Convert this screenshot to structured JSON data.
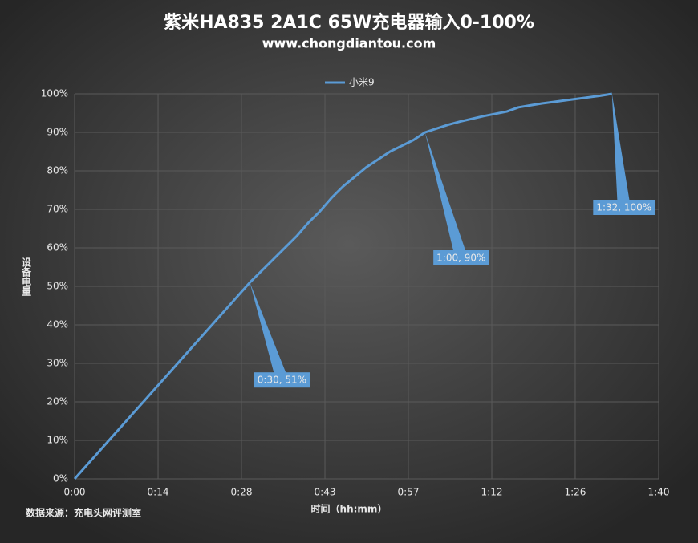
{
  "chart_data": {
    "type": "line",
    "title": "紫米HA835 2A1C 65W充电器输入0-100%",
    "subtitle": "www.chongdiantou.com",
    "x_label": "时间（hh:mm）",
    "y_label": "设备电量",
    "source": "数据来源：充电头网评测室",
    "x": [
      0,
      2,
      4,
      6,
      8,
      10,
      12,
      14,
      16,
      18,
      20,
      22,
      24,
      26,
      28,
      30,
      32,
      34,
      36,
      38,
      40,
      42,
      44,
      46,
      48,
      50,
      52,
      54,
      56,
      58,
      60,
      62,
      64,
      66,
      68,
      70,
      72,
      74,
      76,
      78,
      80,
      82,
      84,
      86,
      88,
      90,
      92
    ],
    "series": [
      {
        "name": "小米9",
        "color": "#5b9bd5",
        "values": [
          0,
          3.4,
          6.8,
          10.2,
          13.6,
          17,
          20.4,
          23.8,
          27.2,
          30.6,
          34,
          37.4,
          40.8,
          44.2,
          47.6,
          51,
          54,
          57,
          60,
          63,
          66.5,
          69.5,
          73,
          76,
          78.5,
          81,
          83,
          85,
          86.5,
          88,
          90,
          91,
          92,
          92.8,
          93.5,
          94.2,
          94.8,
          95.4,
          96.5,
          97,
          97.5,
          97.9,
          98.3,
          98.7,
          99.1,
          99.5,
          100
        ]
      }
    ],
    "annotations": [
      {
        "text": "0:30, 51%",
        "x": 30,
        "y": 51
      },
      {
        "text": "1:00, 90%",
        "x": 60,
        "y": 90
      },
      {
        "text": "1:32, 100%",
        "x": 92,
        "y": 100
      }
    ],
    "xlim": [
      0,
      100
    ],
    "xticks": [
      {
        "value": 0,
        "label": "0:00"
      },
      {
        "value": 14.29,
        "label": "0:14"
      },
      {
        "value": 28.57,
        "label": "0:28"
      },
      {
        "value": 42.86,
        "label": "0:43"
      },
      {
        "value": 57.14,
        "label": "0:57"
      },
      {
        "value": 71.43,
        "label": "1:12"
      },
      {
        "value": 85.71,
        "label": "1:26"
      },
      {
        "value": 100,
        "label": "1:40"
      }
    ],
    "ylim": [
      0,
      100
    ],
    "yticks": [
      {
        "value": 0,
        "label": "0%"
      },
      {
        "value": 10,
        "label": "10%"
      },
      {
        "value": 20,
        "label": "20%"
      },
      {
        "value": 30,
        "label": "30%"
      },
      {
        "value": 40,
        "label": "40%"
      },
      {
        "value": 50,
        "label": "50%"
      },
      {
        "value": 60,
        "label": "60%"
      },
      {
        "value": 70,
        "label": "70%"
      },
      {
        "value": 80,
        "label": "80%"
      },
      {
        "value": 90,
        "label": "90%"
      },
      {
        "value": 100,
        "label": "100%"
      }
    ],
    "grid": true,
    "legend": "top"
  }
}
